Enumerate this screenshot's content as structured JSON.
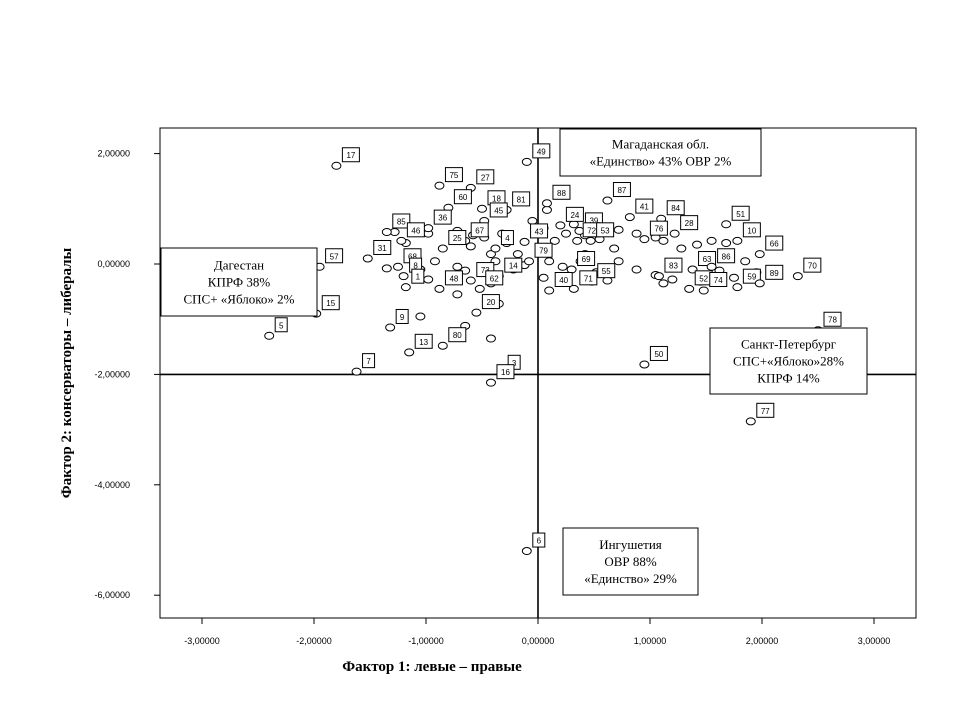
{
  "chart_data": {
    "type": "scatter",
    "xlabel": "Фактор 1: левые – правые",
    "ylabel": "Фактор 2: консерваторы – либералы",
    "xlim": [
      -3.35,
      3.35
    ],
    "ylim": [
      -6.4,
      2.3
    ],
    "x_ticks": [
      {
        "value": -3,
        "label": "-3,00000"
      },
      {
        "value": -2,
        "label": "-2,00000"
      },
      {
        "value": -1,
        "label": "-1,00000"
      },
      {
        "value": 0,
        "label": "0,00000"
      },
      {
        "value": 1,
        "label": "1,00000"
      },
      {
        "value": 2,
        "label": "2,00000"
      },
      {
        "value": 3,
        "label": "3,00000"
      }
    ],
    "y_ticks": [
      {
        "value": 2,
        "label": "2,00000"
      },
      {
        "value": 0,
        "label": "0,00000"
      },
      {
        "value": -2,
        "label": "-2,00000"
      },
      {
        "value": -4,
        "label": "-4,00000"
      },
      {
        "value": -6,
        "label": "-6,00000"
      }
    ],
    "reference_lines": {
      "x": 0,
      "y": -2
    },
    "labeled_points": [
      {
        "label": "17",
        "x": -1.8,
        "y": 1.78
      },
      {
        "label": "49",
        "x": -0.1,
        "y": 1.85
      },
      {
        "label": "75",
        "x": -0.88,
        "y": 1.42
      },
      {
        "label": "27",
        "x": -0.6,
        "y": 1.38
      },
      {
        "label": "87",
        "x": 0.62,
        "y": 1.15
      },
      {
        "label": "88",
        "x": 0.08,
        "y": 1.1
      },
      {
        "label": "60",
        "x": -0.8,
        "y": 1.02
      },
      {
        "label": "18",
        "x": -0.5,
        "y": 1.0
      },
      {
        "label": "81",
        "x": -0.28,
        "y": 0.98
      },
      {
        "label": "41",
        "x": 0.82,
        "y": 0.85
      },
      {
        "label": "84",
        "x": 1.1,
        "y": 0.82
      },
      {
        "label": "51",
        "x": 1.68,
        "y": 0.72
      },
      {
        "label": "85",
        "x": -1.35,
        "y": 0.58
      },
      {
        "label": "36",
        "x": -0.98,
        "y": 0.65
      },
      {
        "label": "45",
        "x": -0.48,
        "y": 0.78
      },
      {
        "label": "24",
        "x": 0.2,
        "y": 0.7
      },
      {
        "label": "39",
        "x": 0.37,
        "y": 0.6
      },
      {
        "label": "28",
        "x": 1.22,
        "y": 0.55
      },
      {
        "label": "46",
        "x": -1.22,
        "y": 0.42
      },
      {
        "label": "67",
        "x": -0.65,
        "y": 0.42
      },
      {
        "label": "43",
        "x": -0.12,
        "y": 0.4
      },
      {
        "label": "72",
        "x": 0.35,
        "y": 0.42
      },
      {
        "label": "53",
        "x": 0.47,
        "y": 0.42
      },
      {
        "label": "76",
        "x": 0.95,
        "y": 0.45
      },
      {
        "label": "10",
        "x": 1.78,
        "y": 0.42
      },
      {
        "label": "25",
        "x": -0.85,
        "y": 0.28
      },
      {
        "label": "4",
        "x": -0.38,
        "y": 0.28
      },
      {
        "label": "66",
        "x": 1.98,
        "y": 0.18
      },
      {
        "label": "31",
        "x": -1.52,
        "y": 0.1
      },
      {
        "label": "57",
        "x": -1.95,
        "y": -0.05
      },
      {
        "label": "68",
        "x": -1.25,
        "y": -0.05
      },
      {
        "label": "79",
        "x": -0.08,
        "y": 0.05
      },
      {
        "label": "69",
        "x": 0.3,
        "y": -0.1
      },
      {
        "label": "63",
        "x": 1.38,
        "y": -0.1
      },
      {
        "label": "86",
        "x": 1.55,
        "y": -0.05
      },
      {
        "label": "70",
        "x": 2.32,
        "y": -0.22
      },
      {
        "label": "8",
        "x": -1.2,
        "y": -0.22
      },
      {
        "label": "83",
        "x": 1.08,
        "y": -0.22
      },
      {
        "label": "73",
        "x": -0.6,
        "y": -0.3
      },
      {
        "label": "14",
        "x": -0.35,
        "y": -0.22
      },
      {
        "label": "55",
        "x": 0.48,
        "y": -0.32
      },
      {
        "label": "1",
        "x": -1.18,
        "y": -0.42
      },
      {
        "label": "48",
        "x": -0.88,
        "y": -0.45
      },
      {
        "label": "62",
        "x": -0.52,
        "y": -0.45
      },
      {
        "label": "40",
        "x": 0.1,
        "y": -0.48
      },
      {
        "label": "71",
        "x": 0.32,
        "y": -0.45
      },
      {
        "label": "52",
        "x": 1.35,
        "y": -0.45
      },
      {
        "label": "74",
        "x": 1.48,
        "y": -0.48
      },
      {
        "label": "59",
        "x": 1.78,
        "y": -0.42
      },
      {
        "label": "89",
        "x": 1.98,
        "y": -0.35
      },
      {
        "label": "15",
        "x": -1.98,
        "y": -0.9
      },
      {
        "label": "9",
        "x": -1.32,
        "y": -1.15
      },
      {
        "label": "5",
        "x": -2.4,
        "y": -1.3
      },
      {
        "label": "20",
        "x": -0.55,
        "y": -0.88
      },
      {
        "label": "80",
        "x": -0.85,
        "y": -1.48
      },
      {
        "label": "78",
        "x": 2.5,
        "y": -1.2
      },
      {
        "label": "50",
        "x": 0.95,
        "y": -1.82
      },
      {
        "label": "7",
        "x": -1.62,
        "y": -1.95
      },
      {
        "label": "13",
        "x": -1.15,
        "y": -1.6
      },
      {
        "label": "3",
        "x": -0.32,
        "y": -1.98
      },
      {
        "label": "16",
        "x": -0.42,
        "y": -2.15
      },
      {
        "label": "77",
        "x": 1.9,
        "y": -2.85
      },
      {
        "label": "6",
        "x": -0.1,
        "y": -5.2
      }
    ],
    "unlabeled_points": [
      {
        "x": -1.28,
        "y": 0.58
      },
      {
        "x": -1.18,
        "y": 0.38
      },
      {
        "x": -1.05,
        "y": 0.58
      },
      {
        "x": -0.98,
        "y": 0.55
      },
      {
        "x": -0.72,
        "y": 0.6
      },
      {
        "x": -0.6,
        "y": 0.32
      },
      {
        "x": -0.58,
        "y": 0.52
      },
      {
        "x": -0.48,
        "y": 0.48
      },
      {
        "x": -0.42,
        "y": 0.18
      },
      {
        "x": -0.32,
        "y": 0.55
      },
      {
        "x": -0.28,
        "y": 0.38
      },
      {
        "x": -0.18,
        "y": 0.18
      },
      {
        "x": -0.05,
        "y": 0.78
      },
      {
        "x": 0.05,
        "y": 0.65
      },
      {
        "x": 0.08,
        "y": 0.98
      },
      {
        "x": 0.15,
        "y": 0.42
      },
      {
        "x": 0.25,
        "y": 0.55
      },
      {
        "x": 0.32,
        "y": 0.72
      },
      {
        "x": 0.42,
        "y": 0.52
      },
      {
        "x": 0.42,
        "y": 0.18
      },
      {
        "x": 0.55,
        "y": 0.45
      },
      {
        "x": 0.68,
        "y": 0.28
      },
      {
        "x": 0.72,
        "y": 0.62
      },
      {
        "x": 0.88,
        "y": 0.55
      },
      {
        "x": 1.05,
        "y": 0.48
      },
      {
        "x": 1.12,
        "y": 0.42
      },
      {
        "x": 1.28,
        "y": 0.28
      },
      {
        "x": 1.42,
        "y": 0.35
      },
      {
        "x": 1.55,
        "y": 0.42
      },
      {
        "x": 1.68,
        "y": 0.38
      },
      {
        "x": 1.85,
        "y": 0.05
      },
      {
        "x": -1.35,
        "y": -0.08
      },
      {
        "x": -1.05,
        "y": -0.1
      },
      {
        "x": -0.92,
        "y": 0.05
      },
      {
        "x": -0.72,
        "y": -0.05
      },
      {
        "x": -0.65,
        "y": -0.12
      },
      {
        "x": -0.48,
        "y": -0.08
      },
      {
        "x": -0.38,
        "y": 0.05
      },
      {
        "x": -0.22,
        "y": -0.1
      },
      {
        "x": -0.12,
        "y": -0.02
      },
      {
        "x": 0.1,
        "y": 0.05
      },
      {
        "x": 0.22,
        "y": -0.05
      },
      {
        "x": 0.38,
        "y": 0.05
      },
      {
        "x": 0.52,
        "y": -0.15
      },
      {
        "x": 0.72,
        "y": 0.05
      },
      {
        "x": 0.88,
        "y": -0.1
      },
      {
        "x": 1.05,
        "y": -0.2
      },
      {
        "x": 1.2,
        "y": -0.28
      },
      {
        "x": 1.45,
        "y": -0.32
      },
      {
        "x": 1.62,
        "y": -0.12
      },
      {
        "x": 1.75,
        "y": -0.25
      },
      {
        "x": 1.95,
        "y": -0.15
      },
      {
        "x": -0.98,
        "y": -0.28
      },
      {
        "x": -0.75,
        "y": -0.2
      },
      {
        "x": -0.42,
        "y": -0.35
      },
      {
        "x": 0.05,
        "y": -0.25
      },
      {
        "x": 0.62,
        "y": -0.3
      },
      {
        "x": 1.12,
        "y": -0.35
      },
      {
        "x": -1.05,
        "y": -0.95
      },
      {
        "x": -0.65,
        "y": -1.12
      },
      {
        "x": -0.35,
        "y": -0.72
      },
      {
        "x": -0.42,
        "y": -1.35
      },
      {
        "x": -0.72,
        "y": -0.55
      }
    ],
    "annotations": [
      {
        "id": "magadan",
        "lines": [
          "Магаданская обл.",
          "«Единство» 43% ОВР 2%"
        ]
      },
      {
        "id": "dagestan",
        "lines": [
          "Дагестан",
          "КПРФ 38%",
          "СПС+ «Яблоко» 2%"
        ]
      },
      {
        "id": "spb",
        "lines": [
          "Санкт-Петербург",
          "СПС+«Яблоко»28%",
          "КПРФ 14%"
        ]
      },
      {
        "id": "ingushetia",
        "lines": [
          "Ингушетия",
          "ОВР 88%",
          "«Единство» 29%"
        ]
      }
    ]
  }
}
